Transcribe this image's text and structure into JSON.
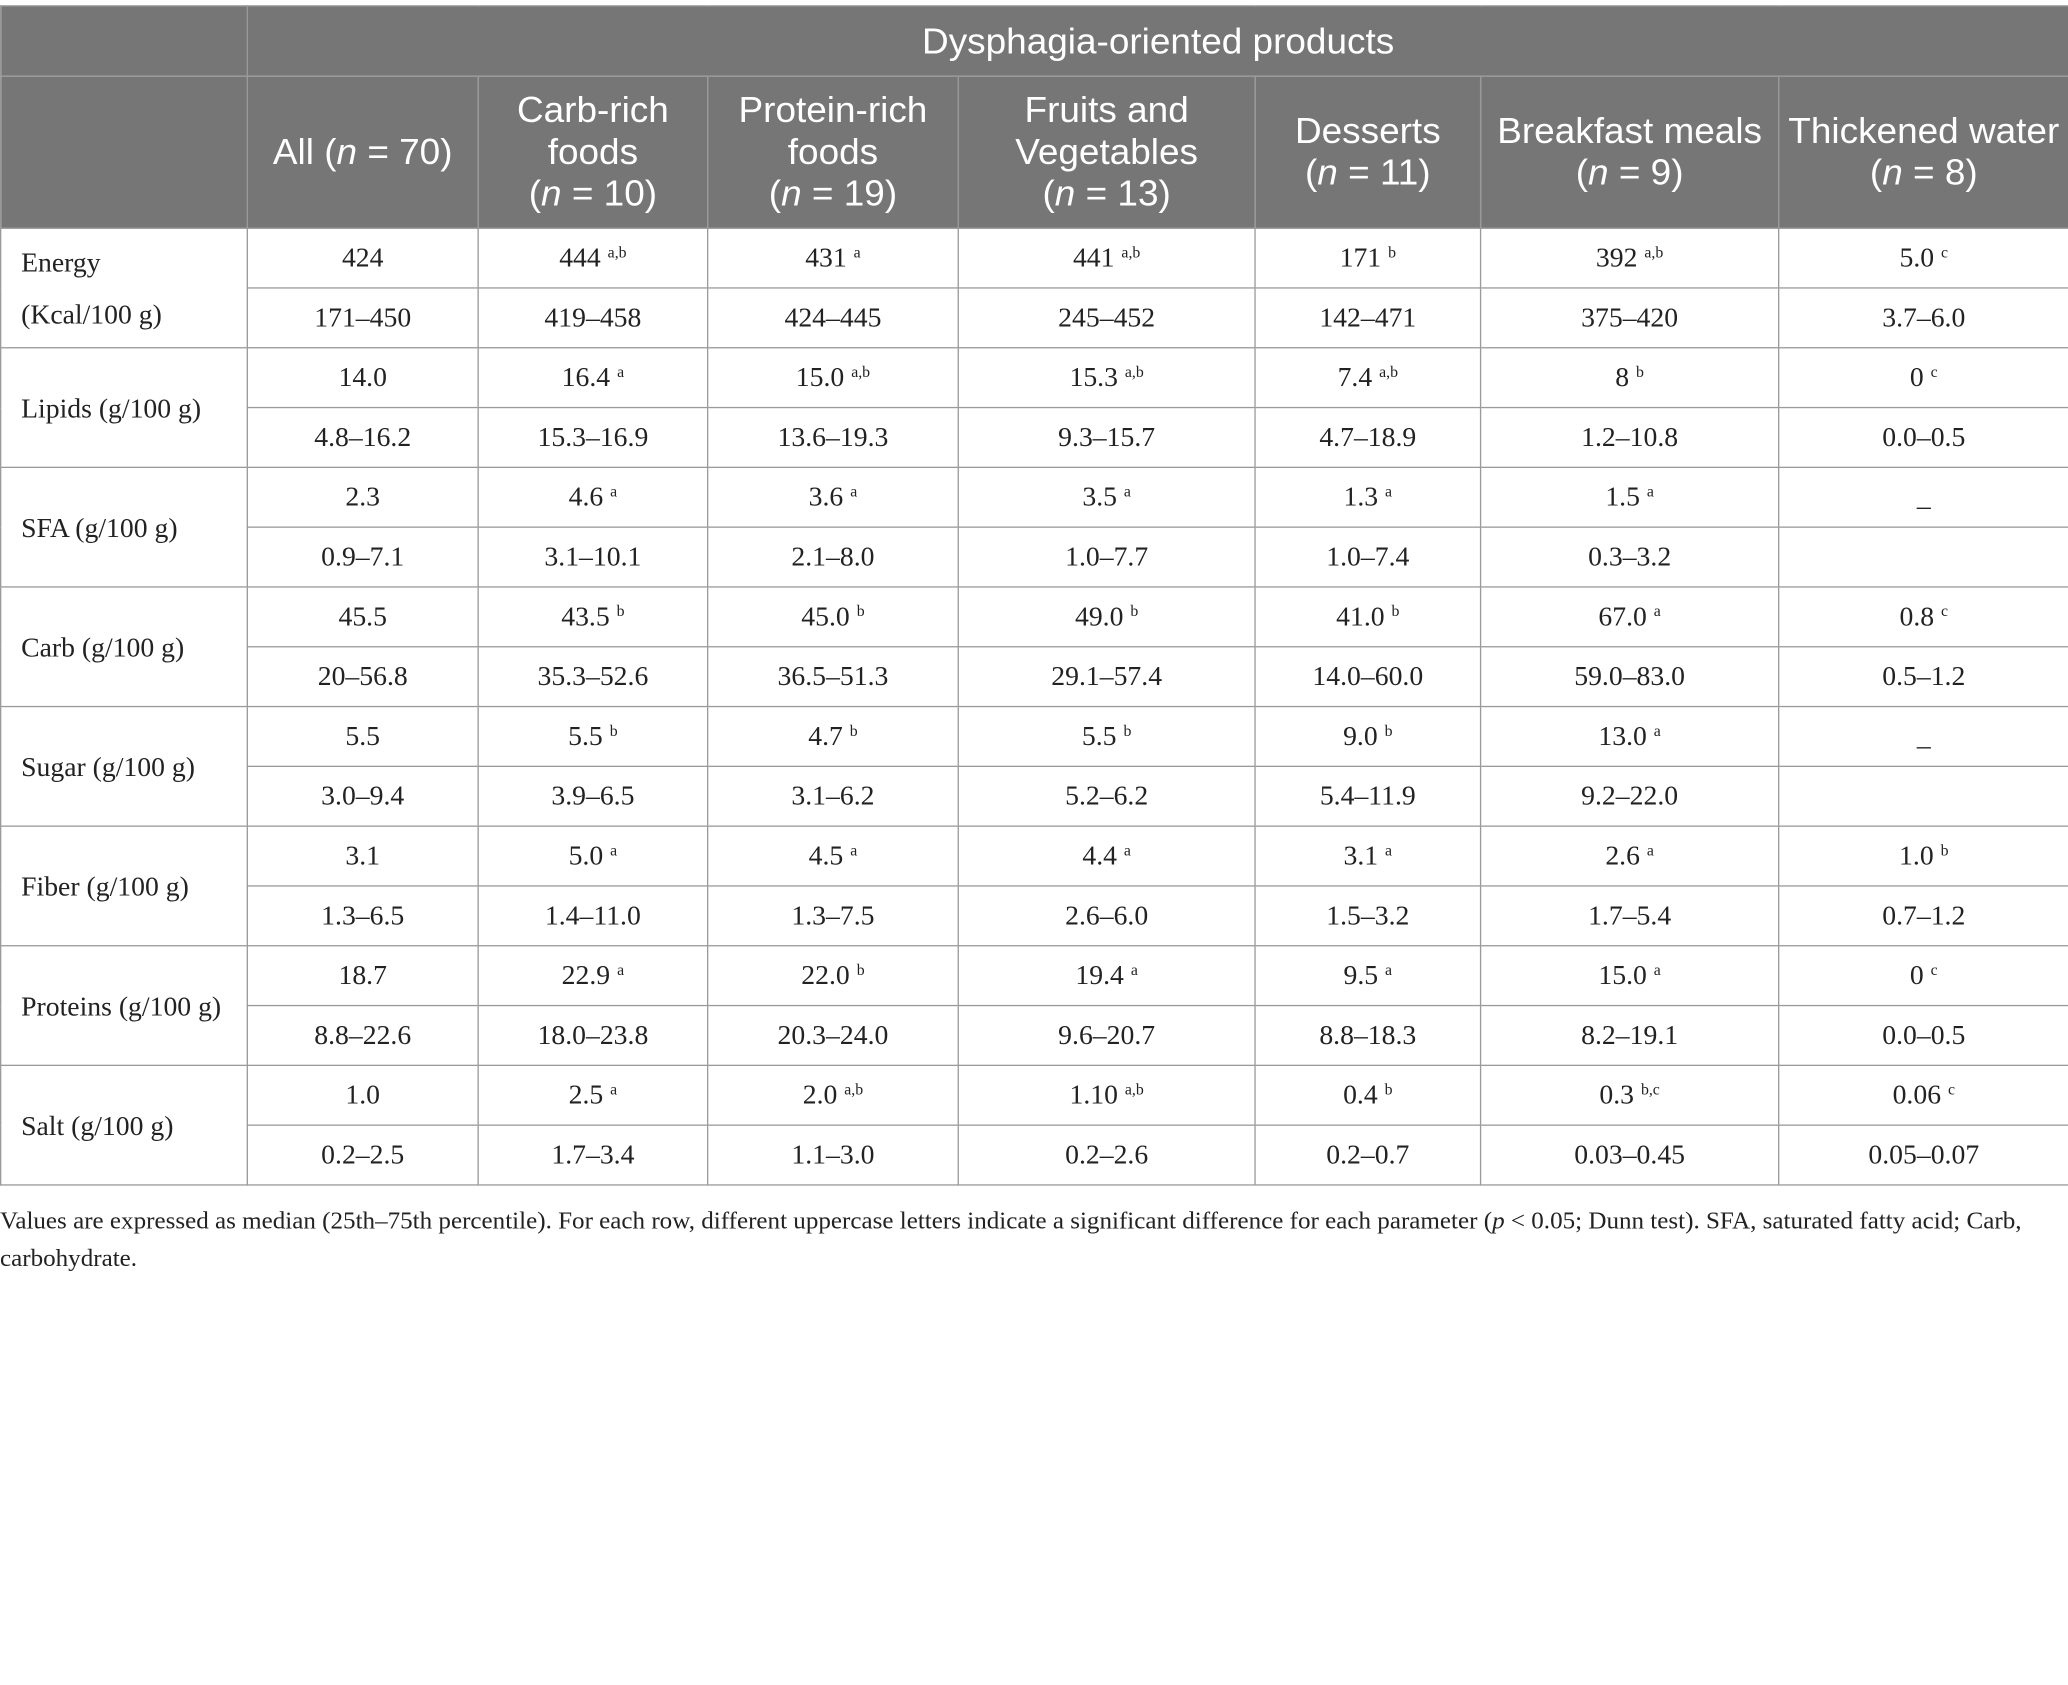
{
  "header": {
    "group_title": "Dysphagia-oriented products",
    "columns": [
      {
        "lines": [
          "All (",
          "n",
          " = 70)"
        ]
      },
      {
        "label": "Carb-rich foods",
        "n": "10"
      },
      {
        "label": "Protein-rich foods",
        "n": "19"
      },
      {
        "label": "Fruits and Vegetables",
        "n": "13"
      },
      {
        "label": "Desserts",
        "n": "11"
      },
      {
        "label": "Breakfast meals",
        "n": "9"
      },
      {
        "label": "Thickened water",
        "n": "8"
      }
    ]
  },
  "rows": [
    {
      "label": [
        "Energy",
        "(Kcal/100 g)"
      ],
      "median": [
        [
          "424",
          ""
        ],
        [
          "444",
          "a,b"
        ],
        [
          "431",
          "a"
        ],
        [
          "441",
          "a,b"
        ],
        [
          "171",
          "b"
        ],
        [
          "392",
          "a,b"
        ],
        [
          "5.0",
          "c"
        ]
      ],
      "iqr": [
        "171–450",
        "419–458",
        "424–445",
        "245–452",
        "142–471",
        "375–420",
        "3.7–6.0"
      ]
    },
    {
      "label": [
        "Lipids (g/100 g)"
      ],
      "median": [
        [
          "14.0",
          ""
        ],
        [
          "16.4",
          "a"
        ],
        [
          "15.0",
          "a,b"
        ],
        [
          "15.3",
          "a,b"
        ],
        [
          "7.4",
          "a,b"
        ],
        [
          "8",
          "b"
        ],
        [
          "0",
          "c"
        ]
      ],
      "iqr": [
        "4.8–16.2",
        "15.3–16.9",
        "13.6–19.3",
        "9.3–15.7",
        "4.7–18.9",
        "1.2–10.8",
        "0.0–0.5"
      ]
    },
    {
      "label": [
        "SFA (g/100 g)"
      ],
      "median": [
        [
          "2.3",
          ""
        ],
        [
          "4.6",
          "a"
        ],
        [
          "3.6",
          "a"
        ],
        [
          "3.5",
          "a"
        ],
        [
          "1.3",
          "a"
        ],
        [
          "1.5",
          "a"
        ],
        [
          "_",
          ""
        ]
      ],
      "iqr": [
        "0.9–7.1",
        "3.1–10.1",
        "2.1–8.0",
        "1.0–7.7",
        "1.0–7.4",
        "0.3–3.2",
        ""
      ]
    },
    {
      "label": [
        "Carb (g/100 g)"
      ],
      "median": [
        [
          "45.5",
          ""
        ],
        [
          "43.5",
          "b"
        ],
        [
          "45.0",
          "b"
        ],
        [
          "49.0",
          "b"
        ],
        [
          "41.0",
          "b"
        ],
        [
          "67.0",
          "a"
        ],
        [
          "0.8",
          "c"
        ]
      ],
      "iqr": [
        "20–56.8",
        "35.3–52.6",
        "36.5–51.3",
        "29.1–57.4",
        "14.0–60.0",
        "59.0–83.0",
        "0.5–1.2"
      ]
    },
    {
      "label": [
        "Sugar (g/100 g)"
      ],
      "median": [
        [
          "5.5",
          ""
        ],
        [
          "5.5",
          "b"
        ],
        [
          "4.7",
          "b"
        ],
        [
          "5.5",
          "b"
        ],
        [
          "9.0",
          "b"
        ],
        [
          "13.0",
          "a"
        ],
        [
          "_",
          ""
        ]
      ],
      "iqr": [
        "3.0–9.4",
        "3.9–6.5",
        "3.1–6.2",
        "5.2–6.2",
        "5.4–11.9",
        "9.2–22.0",
        ""
      ]
    },
    {
      "label": [
        "Fiber (g/100 g)"
      ],
      "median": [
        [
          "3.1",
          ""
        ],
        [
          "5.0",
          "a"
        ],
        [
          "4.5",
          "a"
        ],
        [
          "4.4",
          "a"
        ],
        [
          "3.1",
          "a"
        ],
        [
          "2.6",
          "a"
        ],
        [
          "1.0",
          "b"
        ]
      ],
      "iqr": [
        "1.3–6.5",
        "1.4–11.0",
        "1.3–7.5",
        "2.6–6.0",
        "1.5–3.2",
        "1.7–5.4",
        "0.7–1.2"
      ]
    },
    {
      "label": [
        "Proteins (g/100 g)"
      ],
      "median": [
        [
          "18.7",
          ""
        ],
        [
          "22.9",
          "a"
        ],
        [
          "22.0",
          "b"
        ],
        [
          "19.4",
          "a"
        ],
        [
          "9.5",
          "a"
        ],
        [
          "15.0",
          "a"
        ],
        [
          "0",
          "c"
        ]
      ],
      "iqr": [
        "8.8–22.6",
        "18.0–23.8",
        "20.3–24.0",
        "9.6–20.7",
        "8.8–18.3",
        "8.2–19.1",
        "0.0–0.5"
      ]
    },
    {
      "label": [
        "Salt (g/100 g)"
      ],
      "median": [
        [
          "1.0",
          ""
        ],
        [
          "2.5",
          "a"
        ],
        [
          "2.0",
          "a,b"
        ],
        [
          "1.10",
          "a,b"
        ],
        [
          "0.4",
          "b"
        ],
        [
          "0.3",
          "b,c"
        ],
        [
          "0.06",
          "c"
        ]
      ],
      "iqr": [
        "0.2–2.5",
        "1.7–3.4",
        "1.1–3.0",
        "0.2–2.6",
        "0.2–0.7",
        "0.03–0.45",
        "0.05–0.07"
      ]
    }
  ],
  "footnote": {
    "part1": "Values are expressed as median (25th–75th percentile). For each row, different uppercase letters indicate a significant difference for each parameter (",
    "p": "p",
    "part2": " < 0.05; Dunn test). SFA, saturated fatty acid; Carb, carbohydrate."
  }
}
